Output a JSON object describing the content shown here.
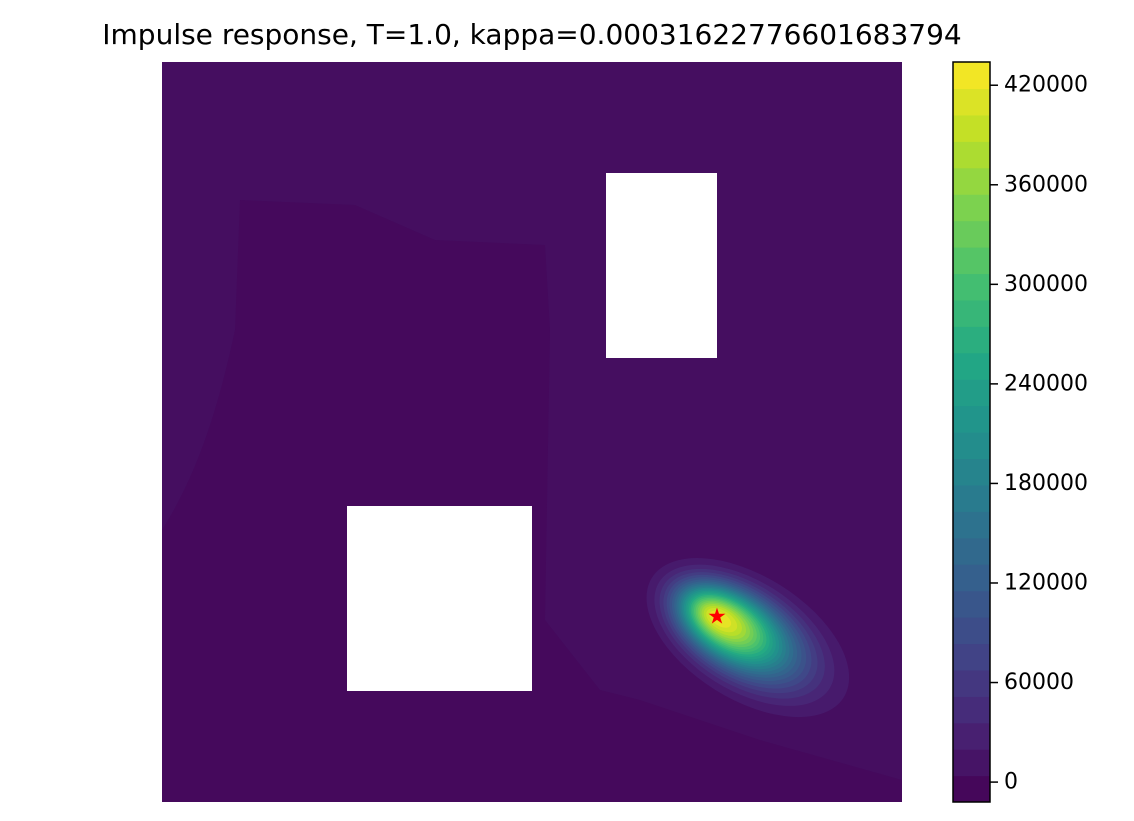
{
  "chart_data": {
    "type": "heatmap",
    "title": "Impulse response, T=1.0, kappa=0.00031622776601683794",
    "xlabel": "",
    "ylabel": "",
    "axes_visible": false,
    "grid": false,
    "colormap": "viridis",
    "domain": {
      "x": [
        0,
        1
      ],
      "y": [
        0,
        1
      ]
    },
    "colorbar": {
      "placement": "right",
      "range": [
        -12000,
        434000
      ],
      "levels": 28,
      "ticks": [
        0,
        60000,
        120000,
        180000,
        240000,
        300000,
        360000,
        420000
      ],
      "tick_labels": [
        "0",
        "60000",
        "120000",
        "180000",
        "240000",
        "300000",
        "360000",
        "420000"
      ]
    },
    "obstacles": [
      {
        "name": "obstacle-lower-left",
        "x0": 0.25,
        "x1": 0.5,
        "y0": 0.15,
        "y1": 0.4
      },
      {
        "name": "obstacle-upper-right",
        "x0": 0.6,
        "x1": 0.75,
        "y0": 0.6,
        "y1": 0.85
      }
    ],
    "field": {
      "background_value": 4000,
      "peak": {
        "x": 0.75,
        "y": 0.25,
        "value": 434000
      }
    },
    "marker": {
      "symbol": "star",
      "color": "#ff0000",
      "x": 0.75,
      "y": 0.25
    }
  }
}
